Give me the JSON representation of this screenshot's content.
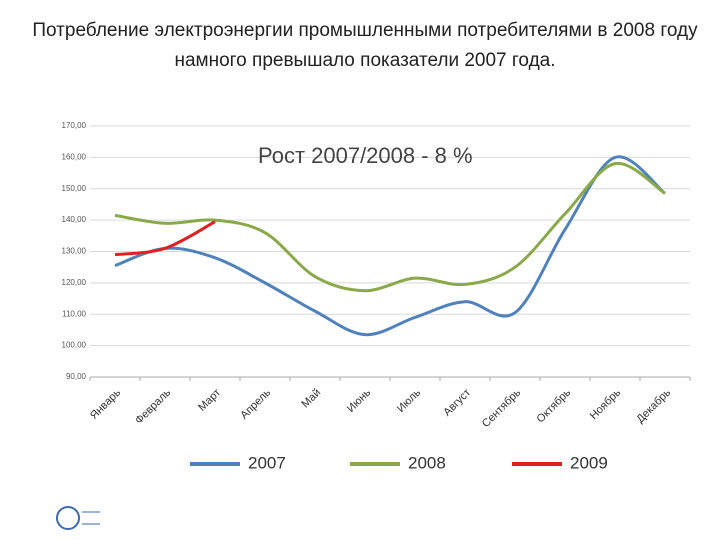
{
  "chart_data": {
    "type": "line",
    "title": "Потребление электроэнергии промышленными потребителями в 2008 году намного превышало показатели 2007 года.",
    "annotation": "Рост 2007/2008 -  8 %",
    "categories": [
      "Январь",
      "Февраль",
      "Март",
      "Апрель",
      "Май",
      "Июнь",
      "Июль",
      "Август",
      "Сентябрь",
      "Октябрь",
      "Ноябрь",
      "Декабрь"
    ],
    "series": [
      {
        "name": "2007",
        "color": "#4f81bd",
        "values": [
          125.5,
          131,
          128,
          120,
          111,
          103.5,
          109,
          114,
          110.5,
          137,
          160,
          148.5
        ]
      },
      {
        "name": "2008",
        "color": "#8aaa4a",
        "values": [
          141.5,
          139,
          140,
          136,
          122,
          117.5,
          121.5,
          119.5,
          125,
          142,
          158,
          148.5
        ]
      },
      {
        "name": "2009",
        "color": "#e02020",
        "values": [
          129,
          131,
          139.5,
          null,
          null,
          null,
          null,
          null,
          null,
          null,
          null,
          null
        ]
      }
    ],
    "ylim": [
      90,
      170
    ],
    "yticks": [
      {
        "value": 90,
        "label": "90,00"
      },
      {
        "value": 100,
        "label": "100,00"
      },
      {
        "value": 110,
        "label": "110,00"
      },
      {
        "value": 120,
        "label": "120,00"
      },
      {
        "value": 130,
        "label": "130,00"
      },
      {
        "value": 140,
        "label": "140,00"
      },
      {
        "value": 150,
        "label": "150,00"
      },
      {
        "value": 160,
        "label": "160,00"
      },
      {
        "value": 170,
        "label": "170,00"
      }
    ],
    "grid": true,
    "legend": "bottom"
  }
}
